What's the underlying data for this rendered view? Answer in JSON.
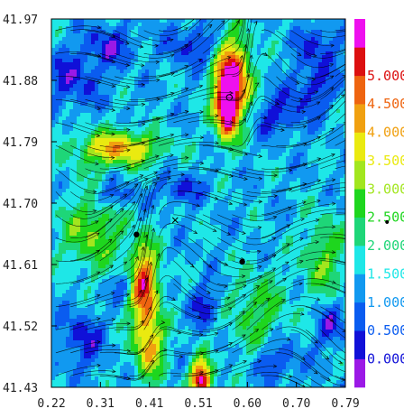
{
  "chart_data": {
    "type": "heatmap",
    "title": "",
    "xlabel": "",
    "ylabel": "",
    "xlim": [
      0.22,
      0.79
    ],
    "ylim": [
      41.43,
      41.97
    ],
    "x_tick_labels": [
      "0.22",
      "0.31",
      "0.41",
      "0.51",
      "0.60",
      "0.70",
      "0.79"
    ],
    "y_tick_labels": [
      "41.97",
      "41.88",
      "41.79",
      "41.70",
      "41.61",
      "41.52",
      "41.43"
    ],
    "colorbar": {
      "labels": [
        "0.000",
        "0.500",
        "1.000",
        "1.500",
        "2.000",
        "2.500",
        "3.000",
        "3.500",
        "4.000",
        "4.500",
        "5.000"
      ],
      "colors": [
        "#9b19e6",
        "#1010d8",
        "#0a5cf0",
        "#1199f0",
        "#1ee7e7",
        "#1ed678",
        "#1ed61e",
        "#a2e61e",
        "#eaea10",
        "#f0a010",
        "#ee6410",
        "#dc1010",
        "#ee10ee"
      ]
    },
    "features": {
      "streamlines": true,
      "contour_lines": true,
      "markers": [
        {
          "type": "dot",
          "x": 0.385,
          "y": 41.654
        },
        {
          "type": "dot",
          "x": 0.59,
          "y": 41.614
        },
        {
          "type": "circle",
          "x": 0.565,
          "y": 41.855
        },
        {
          "type": "x",
          "x": 0.46,
          "y": 41.675
        }
      ]
    }
  },
  "labels": {
    "outside_marker": "•"
  }
}
